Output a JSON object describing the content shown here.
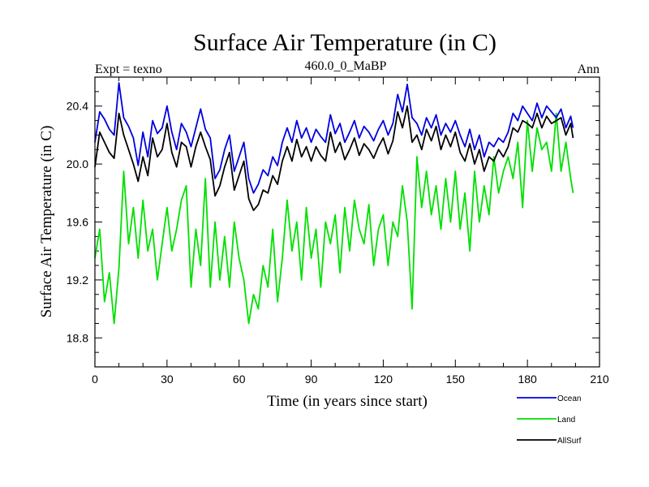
{
  "chart_data": {
    "type": "line",
    "title": "Surface Air Temperature (in C)",
    "subtitle_left": "Expt = texno",
    "subtitle_center": "460.0_0_MaBP",
    "subtitle_right": "Ann",
    "xlabel": "Time (in years since start)",
    "ylabel": "Surface Air Temperature (in C)",
    "xlim": [
      0,
      210
    ],
    "ylim": [
      18.6,
      20.6
    ],
    "xticks": [
      0,
      30,
      60,
      90,
      120,
      150,
      180,
      210
    ],
    "xtick_labels": [
      "0",
      "30",
      "60",
      "90",
      "120",
      "150",
      "180",
      "210"
    ],
    "yticks": [
      18.8,
      19.2,
      19.6,
      20.0,
      20.4
    ],
    "ytick_labels": [
      "18.8",
      "19.2",
      "19.6",
      "20.0",
      "20.4"
    ],
    "legend_placement": "bottom-right",
    "series": [
      {
        "name": "Ocean",
        "color": "#0000e0",
        "x": [
          0,
          2,
          4,
          6,
          8,
          10,
          12,
          14,
          16,
          18,
          20,
          22,
          24,
          26,
          28,
          30,
          32,
          34,
          36,
          38,
          40,
          42,
          44,
          46,
          48,
          50,
          52,
          54,
          56,
          58,
          60,
          62,
          64,
          66,
          68,
          70,
          72,
          74,
          76,
          78,
          80,
          82,
          84,
          86,
          88,
          90,
          92,
          94,
          96,
          98,
          100,
          102,
          104,
          106,
          108,
          110,
          112,
          114,
          116,
          118,
          120,
          122,
          124,
          126,
          128,
          130,
          132,
          134,
          136,
          138,
          140,
          142,
          144,
          146,
          148,
          150,
          152,
          154,
          156,
          158,
          160,
          162,
          164,
          166,
          168,
          170,
          172,
          174,
          176,
          178,
          180,
          182,
          184,
          186,
          188,
          190,
          192,
          194,
          196,
          198,
          199
        ],
        "values": [
          20.15,
          20.36,
          20.31,
          20.24,
          20.2,
          20.56,
          20.32,
          20.26,
          20.18,
          19.99,
          20.22,
          20.05,
          20.3,
          20.21,
          20.25,
          20.4,
          20.22,
          20.1,
          20.28,
          20.22,
          20.12,
          20.25,
          20.38,
          20.24,
          20.18,
          19.9,
          19.96,
          20.1,
          20.2,
          19.95,
          20.05,
          20.15,
          19.9,
          19.8,
          19.86,
          19.96,
          19.92,
          20.05,
          19.99,
          20.15,
          20.25,
          20.15,
          20.3,
          20.18,
          20.25,
          20.15,
          20.24,
          20.19,
          20.15,
          20.34,
          20.21,
          20.28,
          20.15,
          20.22,
          20.3,
          20.18,
          20.26,
          20.22,
          20.16,
          20.24,
          20.3,
          20.2,
          20.28,
          20.48,
          20.36,
          20.55,
          20.32,
          20.28,
          20.2,
          20.32,
          20.25,
          20.34,
          20.2,
          20.28,
          20.22,
          20.3,
          20.2,
          20.12,
          20.24,
          20.1,
          20.2,
          20.05,
          20.15,
          20.12,
          20.18,
          20.15,
          20.22,
          20.35,
          20.3,
          20.4,
          20.35,
          20.3,
          20.42,
          20.32,
          20.4,
          20.36,
          20.32,
          20.38,
          20.25,
          20.33,
          20.25
        ]
      },
      {
        "name": "Land",
        "color": "#00e000",
        "x": [
          0,
          2,
          4,
          6,
          8,
          10,
          12,
          14,
          16,
          18,
          20,
          22,
          24,
          26,
          28,
          30,
          32,
          34,
          36,
          38,
          40,
          42,
          44,
          46,
          48,
          50,
          52,
          54,
          56,
          58,
          60,
          62,
          64,
          66,
          68,
          70,
          72,
          74,
          76,
          78,
          80,
          82,
          84,
          86,
          88,
          90,
          92,
          94,
          96,
          98,
          100,
          102,
          104,
          106,
          108,
          110,
          112,
          114,
          116,
          118,
          120,
          122,
          124,
          126,
          128,
          130,
          132,
          134,
          136,
          138,
          140,
          142,
          144,
          146,
          148,
          150,
          152,
          154,
          156,
          158,
          160,
          162,
          164,
          166,
          168,
          170,
          172,
          174,
          176,
          178,
          180,
          182,
          184,
          186,
          188,
          190,
          192,
          194,
          196,
          198,
          199
        ],
        "values": [
          19.35,
          19.55,
          19.05,
          19.25,
          18.9,
          19.28,
          19.95,
          19.45,
          19.7,
          19.35,
          19.75,
          19.4,
          19.55,
          19.2,
          19.45,
          19.7,
          19.4,
          19.55,
          19.75,
          19.85,
          19.15,
          19.55,
          19.3,
          19.9,
          19.15,
          19.6,
          19.2,
          19.5,
          19.15,
          19.6,
          19.35,
          19.2,
          18.9,
          19.1,
          19.0,
          19.3,
          19.15,
          19.55,
          19.05,
          19.35,
          19.75,
          19.4,
          19.6,
          19.2,
          19.7,
          19.35,
          19.55,
          19.15,
          19.6,
          19.45,
          19.65,
          19.25,
          19.7,
          19.4,
          19.75,
          19.55,
          19.45,
          19.72,
          19.3,
          19.55,
          19.65,
          19.3,
          19.6,
          19.5,
          19.85,
          19.6,
          19.0,
          20.05,
          19.7,
          19.95,
          19.65,
          19.85,
          19.55,
          19.9,
          19.6,
          19.95,
          19.55,
          19.8,
          19.4,
          19.95,
          19.6,
          19.85,
          19.65,
          20.05,
          19.8,
          19.95,
          20.05,
          19.9,
          20.15,
          19.7,
          20.3,
          19.95,
          20.25,
          20.1,
          20.15,
          19.95,
          20.35,
          19.95,
          20.15,
          19.9,
          19.8
        ]
      },
      {
        "name": "AllSurf",
        "color": "#000000",
        "x": [
          0,
          2,
          4,
          6,
          8,
          10,
          12,
          14,
          16,
          18,
          20,
          22,
          24,
          26,
          28,
          30,
          32,
          34,
          36,
          38,
          40,
          42,
          44,
          46,
          48,
          50,
          52,
          54,
          56,
          58,
          60,
          62,
          64,
          66,
          68,
          70,
          72,
          74,
          76,
          78,
          80,
          82,
          84,
          86,
          88,
          90,
          92,
          94,
          96,
          98,
          100,
          102,
          104,
          106,
          108,
          110,
          112,
          114,
          116,
          118,
          120,
          122,
          124,
          126,
          128,
          130,
          132,
          134,
          136,
          138,
          140,
          142,
          144,
          146,
          148,
          150,
          152,
          154,
          156,
          158,
          160,
          162,
          164,
          166,
          168,
          170,
          172,
          174,
          176,
          178,
          180,
          182,
          184,
          186,
          188,
          190,
          192,
          194,
          196,
          198,
          199
        ],
        "values": [
          19.98,
          20.22,
          20.15,
          20.08,
          20.04,
          20.35,
          20.2,
          20.1,
          20.0,
          19.88,
          20.05,
          19.92,
          20.18,
          20.05,
          20.1,
          20.28,
          20.08,
          19.98,
          20.15,
          20.12,
          19.98,
          20.12,
          20.22,
          20.12,
          20.03,
          19.78,
          19.85,
          19.98,
          20.08,
          19.82,
          19.92,
          20.02,
          19.76,
          19.68,
          19.72,
          19.82,
          19.8,
          19.92,
          19.86,
          20.02,
          20.12,
          20.02,
          20.17,
          20.05,
          20.12,
          20.02,
          20.12,
          20.06,
          20.02,
          20.22,
          20.08,
          20.15,
          20.03,
          20.1,
          20.18,
          20.06,
          20.14,
          20.1,
          20.04,
          20.12,
          20.18,
          20.07,
          20.16,
          20.36,
          20.25,
          20.4,
          20.15,
          20.2,
          20.1,
          20.24,
          20.16,
          20.26,
          20.1,
          20.2,
          20.12,
          20.22,
          20.08,
          20.02,
          20.14,
          20.0,
          20.1,
          19.95,
          20.05,
          20.02,
          20.1,
          20.05,
          20.12,
          20.25,
          20.22,
          20.3,
          20.28,
          20.25,
          20.35,
          20.25,
          20.33,
          20.28,
          20.3,
          20.32,
          20.2,
          20.28,
          20.18
        ]
      }
    ]
  }
}
